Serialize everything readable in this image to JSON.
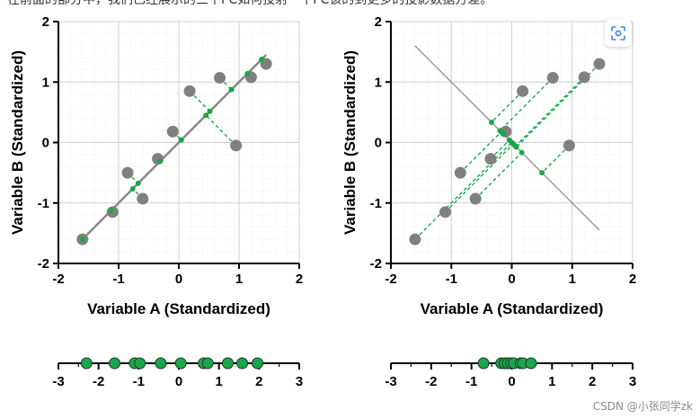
{
  "header_text": "在前面的部分中，我们已经展示的三个PC如何投射一个PC该的到更多的投影数据方差。",
  "watermark": "CSDN @小张同学zk",
  "scan_icon": "scan-icon",
  "colors": {
    "accent": "#1aa64b",
    "point": "#808080",
    "line": "#888888",
    "grid": "#dddddd",
    "axis": "#000000"
  },
  "chart_data": [
    {
      "id": "left-scatter",
      "type": "scatter",
      "title": "",
      "xlabel": "Variable A (Standardized)",
      "ylabel": "Variable B (Standardized)",
      "xlim": [
        -2,
        2
      ],
      "ylim": [
        -2,
        2
      ],
      "xticks": [
        "-2",
        "-1",
        "0",
        "1",
        "2"
      ],
      "yticks": [
        "-2",
        "-1",
        "0",
        "1",
        "2"
      ],
      "grid": true,
      "points": [
        [
          -1.6,
          -1.6
        ],
        [
          -1.1,
          -1.15
        ],
        [
          -0.85,
          -0.5
        ],
        [
          -0.6,
          -0.93
        ],
        [
          -0.35,
          -0.27
        ],
        [
          -0.1,
          0.18
        ],
        [
          0.18,
          0.85
        ],
        [
          0.68,
          1.07
        ],
        [
          0.95,
          -0.05
        ],
        [
          1.2,
          1.08
        ],
        [
          1.45,
          1.3
        ]
      ],
      "projection_line": {
        "slope": 1,
        "from": [
          -1.6,
          -1.6
        ],
        "to": [
          1.45,
          1.45
        ]
      }
    },
    {
      "id": "right-scatter",
      "type": "scatter",
      "title": "",
      "xlabel": "Variable A (Standardized)",
      "ylabel": "Variable B (Standardized)",
      "xlim": [
        -2,
        2
      ],
      "ylim": [
        -2,
        2
      ],
      "xticks": [
        "-2",
        "-1",
        "0",
        "1",
        "2"
      ],
      "yticks": [
        "-2",
        "-1",
        "0",
        "1",
        "2"
      ],
      "grid": true,
      "points": [
        [
          -1.6,
          -1.6
        ],
        [
          -1.1,
          -1.15
        ],
        [
          -0.85,
          -0.5
        ],
        [
          -0.6,
          -0.93
        ],
        [
          -0.35,
          -0.27
        ],
        [
          -0.1,
          0.18
        ],
        [
          0.18,
          0.85
        ],
        [
          0.68,
          1.07
        ],
        [
          0.95,
          -0.05
        ],
        [
          1.2,
          1.08
        ],
        [
          1.45,
          1.3
        ]
      ],
      "projection_line": {
        "slope": -1,
        "from": [
          -1.6,
          1.6
        ],
        "to": [
          1.45,
          -1.45
        ]
      }
    },
    {
      "id": "left-number-line",
      "type": "scatter",
      "axis_range": [
        -3,
        3
      ],
      "ticks": [
        "-3",
        "-2",
        "-1",
        "0",
        "1",
        "2",
        "3"
      ],
      "values": [
        -2.3,
        -1.6,
        -1.1,
        -0.97,
        -0.45,
        0.05,
        0.62,
        0.72,
        1.22,
        1.58,
        1.96
      ]
    },
    {
      "id": "right-number-line",
      "type": "scatter",
      "axis_range": [
        -3,
        3
      ],
      "ticks": [
        "-3",
        "-2",
        "-1",
        "0",
        "1",
        "2",
        "3"
      ],
      "values": [
        -0.7,
        -0.26,
        -0.18,
        -0.1,
        -0.02,
        0.05,
        0.22,
        0.28,
        0.48
      ]
    }
  ]
}
